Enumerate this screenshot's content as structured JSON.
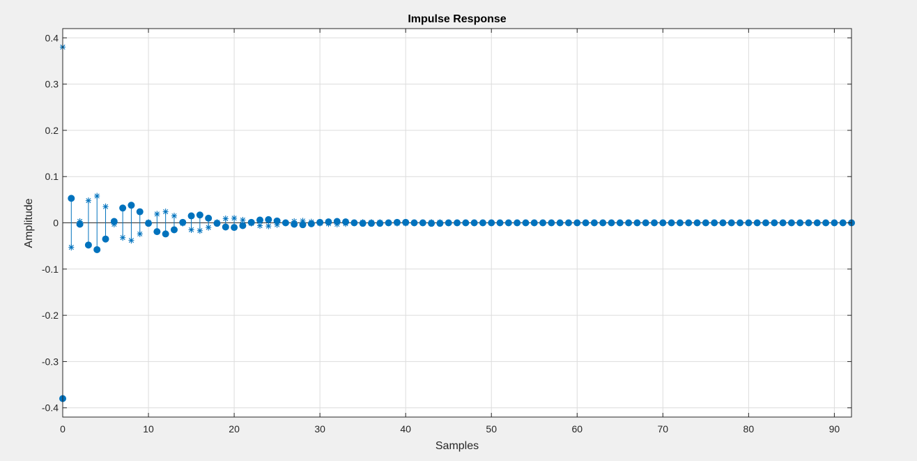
{
  "chart_data": {
    "type": "stem",
    "title": "Impulse Response",
    "xlabel": "Samples",
    "ylabel": "Amplitude",
    "xlim": [
      0,
      92
    ],
    "ylim": [
      -0.42,
      0.42
    ],
    "xticks": [
      0,
      10,
      20,
      30,
      40,
      50,
      60,
      70,
      80,
      90
    ],
    "yticks": [
      0.4,
      0.3,
      0.2,
      0.1,
      0,
      -0.1,
      -0.2,
      -0.3,
      -0.4
    ],
    "ytick_labels": [
      "0.4",
      "0.3",
      "0.2",
      "0.1",
      "0",
      "-0.1",
      "-0.2",
      "-0.3",
      "-0.4"
    ],
    "grid": true,
    "colors": {
      "series": "#0072BD",
      "background": "#f0f0f0",
      "plot": "#ffffff"
    },
    "series": [
      {
        "marker": "filled-circle",
        "x": [
          0,
          1,
          2,
          3,
          4,
          5,
          6,
          7,
          8,
          9,
          10,
          11,
          12,
          13,
          14,
          15,
          16,
          17,
          18,
          19,
          20,
          21,
          22,
          23,
          24,
          25,
          26,
          27,
          28,
          29,
          30,
          31,
          32,
          33,
          34,
          35,
          36,
          37,
          38,
          39,
          40,
          41,
          42,
          43,
          44,
          45,
          46,
          47,
          48,
          49,
          50,
          51,
          52,
          53,
          54,
          55,
          56,
          57,
          58,
          59,
          60,
          61,
          62,
          63,
          64,
          65,
          66,
          67,
          68,
          69,
          70,
          71,
          72,
          73,
          74,
          75,
          76,
          77,
          78,
          79,
          80,
          81,
          82,
          83,
          84,
          85,
          86,
          87,
          88,
          89,
          90,
          91,
          92
        ],
        "y": [
          -0.38,
          0.053,
          -0.003,
          -0.048,
          -0.058,
          -0.035,
          0.003,
          0.032,
          0.038,
          0.024,
          -0.001,
          -0.019,
          -0.024,
          -0.015,
          0.001,
          0.015,
          0.017,
          0.01,
          -0.001,
          -0.009,
          -0.01,
          -0.006,
          0.001,
          0.006,
          0.007,
          0.004,
          0,
          -0.003,
          -0.004,
          -0.002,
          0.001,
          0.002,
          0.003,
          0.002,
          0,
          -0.001,
          -0.001,
          -0.001,
          0,
          0.001,
          0.001,
          0,
          0,
          -0.001,
          -0.001,
          0,
          0,
          0,
          0,
          0,
          0,
          0,
          0,
          0,
          0,
          0,
          0,
          0,
          0,
          0,
          0,
          0,
          0,
          0,
          0,
          0,
          0,
          0,
          0,
          0,
          0,
          0,
          0,
          0,
          0,
          0,
          0,
          0,
          0,
          0,
          0,
          0,
          0,
          0,
          0,
          0,
          0,
          0,
          0,
          0,
          0,
          0,
          0
        ]
      },
      {
        "marker": "asterisk",
        "x": [
          0,
          1,
          2,
          3,
          4,
          5,
          6,
          7,
          8,
          9,
          10,
          11,
          12,
          13,
          14,
          15,
          16,
          17,
          18,
          19,
          20,
          21,
          22,
          23,
          24,
          25,
          26,
          27,
          28,
          29,
          30,
          31,
          32,
          33,
          34,
          35,
          36,
          37,
          38,
          39,
          40,
          41,
          42,
          43,
          44,
          45,
          46,
          47,
          48,
          49,
          50,
          51,
          52,
          53,
          54,
          55,
          56,
          57,
          58,
          59,
          60,
          61,
          62,
          63,
          64,
          65,
          66,
          67,
          68,
          69,
          70,
          71,
          72,
          73,
          74,
          75,
          76,
          77,
          78,
          79,
          80,
          81,
          82,
          83,
          84,
          85,
          86,
          87,
          88,
          89,
          90,
          91,
          92
        ],
        "y": [
          0.38,
          -0.053,
          0.003,
          0.048,
          0.058,
          0.035,
          -0.003,
          -0.032,
          -0.038,
          -0.024,
          0.001,
          0.019,
          0.024,
          0.015,
          -0.001,
          -0.015,
          -0.017,
          -0.01,
          0.001,
          0.009,
          0.01,
          0.006,
          -0.001,
          -0.006,
          -0.007,
          -0.004,
          0,
          0.003,
          0.004,
          0.002,
          -0.001,
          -0.002,
          -0.003,
          -0.002,
          0,
          0.001,
          0.001,
          0.001,
          0,
          -0.001,
          -0.001,
          0,
          0,
          0.001,
          0.001,
          0,
          0,
          0,
          0,
          0,
          0,
          0,
          0,
          0,
          0,
          0,
          0,
          0,
          0,
          0,
          0,
          0,
          0,
          0,
          0,
          0,
          0,
          0,
          0,
          0,
          0,
          0,
          0,
          0,
          0,
          0,
          0,
          0,
          0,
          0,
          0,
          0,
          0,
          0,
          0,
          0,
          0,
          0,
          0,
          0,
          0,
          0,
          0
        ]
      }
    ]
  }
}
